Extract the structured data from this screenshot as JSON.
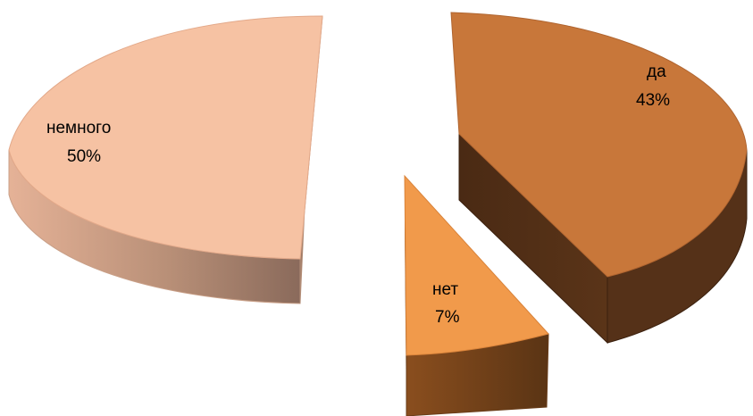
{
  "chart_data": {
    "type": "pie",
    "title": "",
    "categories": [
      "да",
      "нет",
      "немного"
    ],
    "values": [
      43,
      7,
      50
    ],
    "value_labels": [
      "43%",
      "7%",
      "50%"
    ],
    "colors": {
      "да": "#C8773A",
      "нет": "#F19A4B",
      "немного": "#F6C2A3"
    },
    "side_colors": {
      "да": "#553118",
      "нет": "#70401A",
      "немного": "#C49A82"
    },
    "style": "3d-exploded",
    "legend": "none",
    "grid": false
  }
}
